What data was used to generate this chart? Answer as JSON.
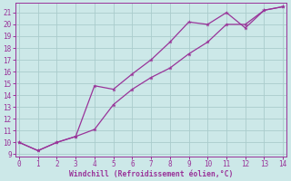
{
  "xlabel": "Windchill (Refroidissement éolien,°C)",
  "line1_x": [
    0,
    1,
    2,
    3,
    4,
    5,
    6,
    7,
    8,
    9,
    10,
    11,
    12,
    13,
    14
  ],
  "line1_y": [
    10,
    9.3,
    10,
    10.5,
    14.8,
    14.5,
    15.8,
    17.0,
    18.5,
    20.2,
    20.0,
    21.0,
    19.7,
    21.2,
    21.5
  ],
  "line2_x": [
    0,
    1,
    2,
    3,
    4,
    5,
    6,
    7,
    8,
    9,
    10,
    11,
    12,
    13,
    14
  ],
  "line2_y": [
    10,
    9.3,
    10,
    10.5,
    11.1,
    13.2,
    14.5,
    15.5,
    16.3,
    17.5,
    18.5,
    20.0,
    20.0,
    21.2,
    21.5
  ],
  "line_color": "#993399",
  "bg_color": "#cce8e8",
  "grid_color": "#aacccc",
  "text_color": "#993399",
  "spine_color": "#993399",
  "xlim": [
    -0.2,
    14.2
  ],
  "ylim": [
    8.8,
    21.8
  ],
  "yticks": [
    9,
    10,
    11,
    12,
    13,
    14,
    15,
    16,
    17,
    18,
    19,
    20,
    21
  ],
  "xticks": [
    0,
    1,
    2,
    3,
    4,
    5,
    6,
    7,
    8,
    9,
    10,
    11,
    12,
    13,
    14
  ],
  "tick_fontsize": 5.5,
  "xlabel_fontsize": 5.8
}
